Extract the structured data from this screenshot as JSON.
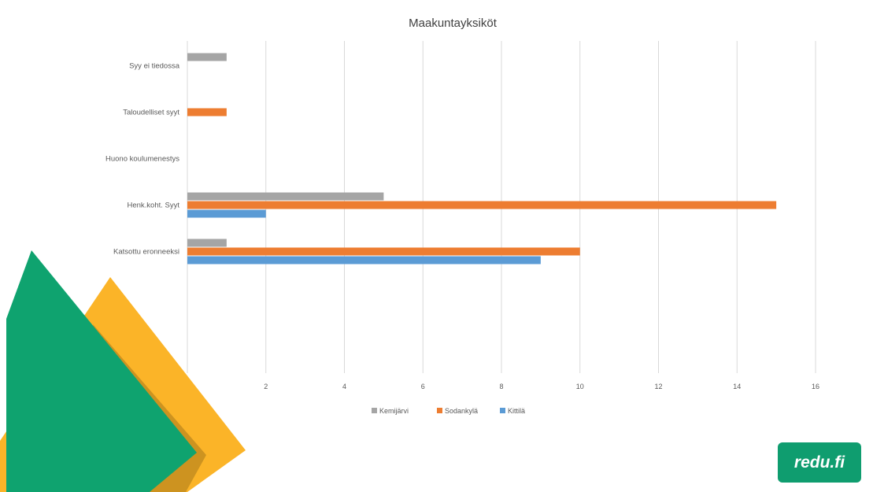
{
  "chart_data": {
    "type": "bar",
    "orientation": "horizontal",
    "title": "Maakuntayksiköt",
    "categories": [
      "Syy ei tiedossa",
      "Taloudelliset syyt",
      "Huono koulumenestys",
      "Henk.koht. Syyt",
      "Katsottu eronneeksi"
    ],
    "series": [
      {
        "name": "Kemijärvi",
        "color": "#a5a5a5",
        "values": [
          1,
          0,
          0,
          5,
          1
        ]
      },
      {
        "name": "Sodankylä",
        "color": "#ed7d31",
        "values": [
          0,
          1,
          0,
          15,
          10
        ]
      },
      {
        "name": "Kittilä",
        "color": "#5b9bd5",
        "values": [
          0,
          0,
          0,
          2,
          9
        ]
      }
    ],
    "xlim": [
      0,
      16
    ],
    "xticks": [
      "0",
      "2",
      "4",
      "6",
      "8",
      "10",
      "12",
      "14",
      "16"
    ],
    "grid": "vertical",
    "legend_position": "bottom"
  },
  "logo": {
    "text": "redu.fi",
    "bg_color": "#0f9d6f"
  },
  "decor": {
    "green_color": "#0fa36f",
    "yellow_color": "#fbb428"
  }
}
